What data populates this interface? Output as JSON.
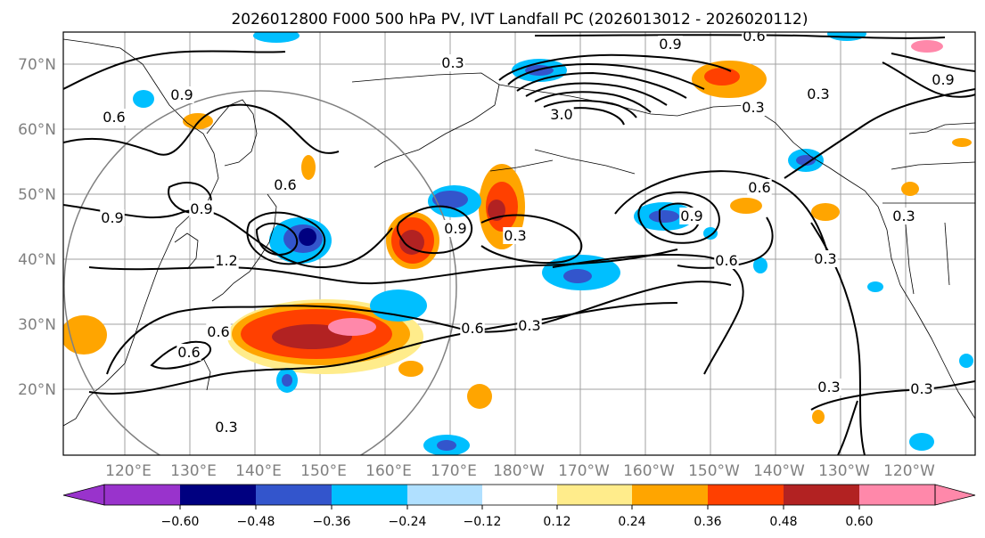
{
  "title": "2026012800 F000 500 hPa PV, IVT Landfall PC (2026013012 - 2026020112)",
  "map": {
    "lat_labels": [
      "70°N",
      "60°N",
      "50°N",
      "40°N",
      "30°N",
      "20°N"
    ],
    "lon_labels": [
      "120°E",
      "130°E",
      "140°E",
      "150°E",
      "160°E",
      "170°E",
      "180°W",
      "170°W",
      "160°W",
      "150°W",
      "140°W",
      "130°W",
      "120°W"
    ],
    "contour_labels": [
      "0.6",
      "0.9",
      "0.3",
      "0.9",
      "0.6",
      "0.6",
      "0.9",
      "1.2",
      "0.6",
      "0.6",
      "0.3",
      "0.9",
      "0.9",
      "0.3",
      "0.6",
      "0.3",
      "0.6",
      "0.3",
      "0.3",
      "0.3",
      "0.3",
      "0.6",
      "0.9",
      "0.3",
      "3.0",
      "0.3",
      "0.9"
    ],
    "colors": {
      "contour": "#000000",
      "grid": "#a0a0a0",
      "circle": "#808080"
    }
  },
  "colorbar": {
    "colors": [
      "#9933cc",
      "#000080",
      "#3355cc",
      "#00bfff",
      "#b0e0ff",
      "#ffffff",
      "#ffec8b",
      "#ffa500",
      "#ff4000",
      "#b22222",
      "#ff88aa"
    ],
    "tick_labels": [
      "−0.60",
      "−0.48",
      "−0.36",
      "−0.24",
      "−0.12",
      "0.12",
      "0.24",
      "0.36",
      "0.48",
      "0.60"
    ]
  }
}
